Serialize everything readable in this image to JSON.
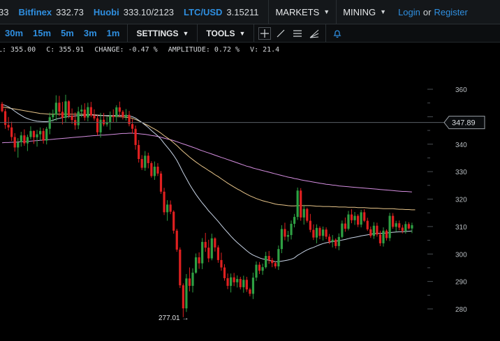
{
  "ticker": [
    {
      "exchange": "",
      "price": "33"
    },
    {
      "exchange": "Bitfinex",
      "price": "332.73"
    },
    {
      "exchange": "Huobi",
      "price": "333.10/2123"
    },
    {
      "exchange": "LTC/USD",
      "price": "3.15211"
    }
  ],
  "menus": {
    "markets": "MARKETS",
    "mining": "MINING"
  },
  "auth": {
    "login": "Login",
    "or": "or",
    "register": "Register"
  },
  "timeframes": [
    "30m",
    "15m",
    "5m",
    "3m",
    "1m"
  ],
  "toolbar": {
    "settings": "SETTINGS",
    "tools": "TOOLS"
  },
  "tool_icons": [
    "crosshair-icon",
    "line-icon",
    "horizontal-lines-icon",
    "fan-icon",
    "alarm-bell-icon"
  ],
  "stats": {
    "low": "L: 355.00",
    "close": "C: 355.91",
    "change": "CHANGE: -0.47 %",
    "amplitude": "AMPLITUDE: 0.72 %",
    "volume": "V: 21.4"
  },
  "colors": {
    "up": "#2ea043",
    "down": "#e02020",
    "accent": "#2f8fe0",
    "ma_fast": "#c8d4e6",
    "ma_mid": "#e8c58a",
    "ma_slow": "#d58ee0"
  },
  "chart_data": {
    "type": "candlestick",
    "ylim": [
      274,
      366
    ],
    "yticks": [
      280,
      290,
      300,
      310,
      320,
      330,
      340,
      360
    ],
    "current_price": "347.89",
    "low_marker": "277.01 →",
    "candles": [
      [
        354.7,
        355.4,
        351.6,
        352.0
      ],
      [
        352.0,
        352.9,
        345.6,
        347.0
      ],
      [
        347.0,
        349.9,
        345.0,
        346.1
      ],
      [
        346.1,
        348.2,
        341.2,
        342.6
      ],
      [
        342.6,
        344.0,
        337.3,
        338.8
      ],
      [
        338.8,
        342.2,
        335.1,
        340.7
      ],
      [
        340.7,
        344.5,
        339.1,
        343.2
      ],
      [
        343.2,
        345.4,
        339.4,
        340.3
      ],
      [
        340.3,
        343.5,
        337.5,
        342.6
      ],
      [
        342.6,
        346.5,
        341.8,
        344.8
      ],
      [
        344.8,
        345.0,
        340.1,
        342.5
      ],
      [
        342.5,
        345.2,
        339.1,
        343.6
      ],
      [
        343.6,
        346.1,
        341.2,
        344.8
      ],
      [
        344.8,
        345.8,
        340.2,
        341.3
      ],
      [
        341.3,
        346.3,
        339.9,
        345.6
      ],
      [
        345.6,
        351.5,
        343.6,
        349.8
      ],
      [
        349.8,
        352.6,
        348.2,
        350.8
      ],
      [
        350.8,
        357.8,
        348.5,
        355.1
      ],
      [
        355.1,
        357.6,
        350.2,
        351.8
      ],
      [
        351.8,
        355.4,
        347.2,
        349.6
      ],
      [
        349.6,
        358.0,
        347.9,
        355.6
      ],
      [
        355.6,
        356.0,
        349.4,
        350.4
      ],
      [
        350.4,
        353.0,
        347.4,
        348.8
      ],
      [
        348.8,
        351.6,
        345.3,
        346.9
      ],
      [
        346.9,
        353.6,
        345.5,
        351.9
      ],
      [
        351.9,
        354.3,
        349.8,
        352.6
      ],
      [
        352.6,
        354.9,
        348.6,
        349.7
      ],
      [
        349.7,
        355.1,
        348.3,
        353.5
      ],
      [
        353.5,
        355.4,
        349.8,
        350.5
      ],
      [
        350.5,
        352.7,
        348.6,
        349.4
      ],
      [
        349.4,
        350.6,
        343.2,
        344.3
      ],
      [
        344.3,
        351.4,
        342.4,
        348.9
      ],
      [
        348.9,
        351.4,
        346.5,
        347.2
      ],
      [
        347.2,
        350.0,
        346.4,
        348.0
      ],
      [
        348.0,
        351.9,
        345.2,
        350.4
      ],
      [
        350.4,
        352.7,
        348.1,
        349.9
      ],
      [
        349.9,
        354.2,
        348.1,
        353.4
      ],
      [
        353.4,
        355.5,
        350.0,
        351.8
      ],
      [
        351.8,
        352.4,
        349.0,
        349.9
      ],
      [
        349.9,
        352.8,
        348.6,
        350.7
      ],
      [
        350.7,
        352.1,
        346.5,
        347.3
      ],
      [
        347.3,
        349.2,
        343.8,
        345.6
      ],
      [
        345.6,
        346.8,
        338.0,
        339.7
      ],
      [
        339.7,
        341.5,
        333.3,
        334.6
      ],
      [
        334.6,
        336.0,
        330.6,
        331.4
      ],
      [
        331.4,
        337.5,
        330.3,
        335.8
      ],
      [
        335.8,
        336.9,
        331.2,
        333.1
      ],
      [
        333.1,
        333.8,
        327.8,
        328.4
      ],
      [
        328.4,
        333.7,
        327.0,
        331.8
      ],
      [
        331.8,
        333.1,
        328.4,
        329.3
      ],
      [
        329.3,
        330.2,
        321.9,
        322.7
      ],
      [
        322.7,
        324.1,
        314.2,
        315.2
      ],
      [
        315.2,
        319.6,
        312.1,
        318.0
      ],
      [
        318.0,
        319.5,
        314.5,
        315.4
      ],
      [
        315.4,
        315.9,
        307.4,
        308.5
      ],
      [
        308.5,
        309.2,
        300.8,
        301.6
      ],
      [
        301.6,
        302.4,
        287.6,
        288.6
      ],
      [
        288.6,
        289.3,
        277.0,
        280.2
      ],
      [
        280.2,
        292.7,
        278.9,
        291.1
      ],
      [
        291.1,
        295.1,
        286.4,
        288.4
      ],
      [
        288.4,
        294.8,
        286.0,
        293.2
      ],
      [
        293.2,
        300.2,
        292.8,
        298.8
      ],
      [
        298.8,
        300.6,
        294.6,
        296.6
      ],
      [
        296.6,
        305.8,
        294.5,
        304.4
      ],
      [
        304.4,
        307.7,
        300.8,
        302.3
      ],
      [
        302.3,
        305.2,
        297.0,
        298.4
      ],
      [
        298.4,
        307.4,
        297.7,
        305.7
      ],
      [
        305.7,
        306.1,
        300.9,
        302.4
      ],
      [
        302.4,
        303.2,
        296.8,
        297.8
      ],
      [
        297.8,
        300.5,
        293.9,
        295.1
      ],
      [
        295.1,
        296.3,
        290.3,
        291.2
      ],
      [
        291.2,
        292.9,
        287.2,
        288.4
      ],
      [
        288.4,
        292.9,
        286.0,
        291.5
      ],
      [
        291.5,
        293.1,
        288.3,
        289.7
      ],
      [
        289.7,
        292.2,
        287.8,
        290.9
      ],
      [
        290.9,
        291.7,
        287.1,
        287.9
      ],
      [
        287.9,
        292.1,
        285.9,
        290.6
      ],
      [
        290.6,
        291.7,
        286.2,
        287.1
      ],
      [
        287.1,
        287.7,
        284.6,
        285.5
      ],
      [
        285.5,
        293.2,
        283.6,
        291.4
      ],
      [
        291.4,
        297.3,
        290.2,
        296.1
      ],
      [
        296.1,
        297.1,
        292.7,
        293.9
      ],
      [
        293.9,
        296.5,
        292.4,
        295.2
      ],
      [
        295.2,
        300.8,
        294.7,
        299.3
      ],
      [
        299.3,
        301.1,
        296.4,
        297.8
      ],
      [
        297.8,
        298.6,
        295.2,
        296.7
      ],
      [
        296.7,
        297.3,
        294.7,
        295.5
      ],
      [
        295.5,
        303.1,
        294.2,
        301.8
      ],
      [
        301.8,
        310.5,
        300.3,
        309.1
      ],
      [
        309.1,
        311.4,
        305.0,
        306.3
      ],
      [
        306.3,
        308.4,
        304.5,
        306.9
      ],
      [
        306.9,
        312.2,
        305.3,
        311.0
      ],
      [
        311.0,
        314.6,
        309.7,
        313.5
      ],
      [
        313.5,
        324.2,
        312.4,
        323.1
      ],
      [
        323.1,
        324.0,
        312.1,
        313.3
      ],
      [
        313.3,
        317.9,
        310.7,
        316.4
      ],
      [
        316.4,
        316.9,
        311.4,
        312.1
      ],
      [
        312.1,
        314.6,
        307.9,
        308.8
      ],
      [
        308.8,
        310.8,
        305.1,
        306.0
      ],
      [
        306.0,
        310.8,
        303.9,
        309.5
      ],
      [
        309.5,
        310.1,
        305.4,
        306.6
      ],
      [
        306.6,
        310.0,
        304.9,
        308.9
      ],
      [
        308.9,
        309.7,
        305.4,
        306.3
      ],
      [
        306.3,
        307.3,
        303.6,
        304.5
      ],
      [
        304.5,
        306.9,
        302.4,
        305.2
      ],
      [
        305.2,
        305.7,
        302.0,
        302.9
      ],
      [
        302.9,
        307.5,
        301.4,
        306.2
      ],
      [
        306.2,
        312.2,
        305.7,
        311.1
      ],
      [
        311.1,
        313.3,
        308.1,
        309.2
      ],
      [
        309.2,
        315.7,
        308.6,
        314.4
      ],
      [
        314.4,
        316.3,
        311.2,
        312.3
      ],
      [
        312.3,
        315.3,
        310.6,
        313.9
      ],
      [
        313.9,
        314.5,
        309.8,
        310.7
      ],
      [
        310.7,
        316.1,
        309.7,
        315.2
      ],
      [
        315.2,
        316.3,
        311.6,
        312.1
      ],
      [
        312.1,
        313.2,
        308.4,
        309.0
      ],
      [
        309.0,
        310.0,
        305.9,
        306.6
      ],
      [
        306.6,
        311.6,
        305.5,
        310.3
      ],
      [
        310.3,
        311.4,
        306.3,
        307.1
      ],
      [
        307.1,
        308.5,
        302.9,
        303.9
      ],
      [
        303.9,
        309.7,
        302.7,
        308.5
      ],
      [
        308.5,
        309.0,
        304.9,
        305.8
      ],
      [
        305.8,
        315.0,
        304.7,
        313.9
      ],
      [
        313.9,
        314.9,
        309.2,
        309.9
      ],
      [
        309.9,
        312.1,
        308.1,
        311.2
      ],
      [
        311.2,
        312.2,
        308.6,
        309.6
      ],
      [
        309.6,
        310.6,
        307.5,
        308.4
      ],
      [
        308.4,
        311.9,
        307.4,
        310.9
      ],
      [
        310.9,
        311.6,
        308.9,
        309.3
      ],
      [
        309.3,
        311.4,
        307.6,
        310.5
      ]
    ],
    "ma_fast": [
      354.5,
      354.1,
      353.6,
      352.9,
      352.0,
      351.2,
      350.5,
      349.8,
      349.3,
      348.9,
      348.6,
      348.4,
      348.3,
      348.2,
      348.2,
      348.4,
      348.7,
      349.1,
      349.4,
      349.7,
      349.9,
      350.1,
      350.2,
      350.3,
      350.4,
      350.5,
      350.5,
      350.6,
      350.6,
      350.6,
      350.4,
      350.4,
      350.4,
      350.4,
      350.4,
      350.4,
      350.5,
      350.5,
      350.4,
      350.4,
      350.3,
      350.0,
      349.5,
      348.7,
      347.9,
      347.0,
      346.1,
      345.0,
      344.0,
      343.0,
      341.8,
      340.3,
      338.9,
      337.5,
      335.9,
      334.1,
      331.9,
      329.6,
      327.5,
      325.4,
      323.5,
      321.7,
      320.1,
      318.6,
      317.2,
      315.7,
      314.5,
      313.2,
      311.9,
      310.5,
      309.1,
      307.8,
      306.5,
      305.3,
      304.2,
      303.2,
      302.2,
      301.2,
      300.3,
      299.6,
      299.1,
      298.6,
      298.2,
      298.0,
      297.7,
      297.4,
      297.2,
      297.2,
      297.4,
      297.6,
      297.8,
      298.1,
      298.6,
      299.5,
      300.2,
      300.9,
      301.5,
      302.0,
      302.4,
      302.9,
      303.4,
      303.8,
      304.1,
      304.3,
      304.5,
      304.7,
      304.8,
      305.1,
      305.3,
      305.6,
      305.9,
      306.1,
      306.3,
      306.6,
      306.8,
      307.0,
      307.2,
      307.4,
      307.5,
      307.5,
      307.6,
      307.6,
      307.8,
      307.9,
      308.0,
      308.1,
      308.1,
      308.2,
      308.3,
      308.4
    ],
    "ma_mid": [
      353.5,
      353.4,
      353.2,
      353.0,
      352.8,
      352.6,
      352.4,
      352.2,
      352.0,
      351.8,
      351.6,
      351.4,
      351.2,
      351.1,
      351.0,
      350.9,
      350.9,
      350.9,
      350.9,
      350.9,
      350.9,
      350.9,
      350.9,
      350.9,
      350.9,
      350.9,
      350.8,
      350.8,
      350.8,
      350.7,
      350.6,
      350.5,
      350.4,
      350.3,
      350.2,
      350.1,
      350.1,
      350.0,
      349.9,
      349.8,
      349.7,
      349.4,
      349.0,
      348.5,
      347.9,
      347.3,
      346.8,
      346.1,
      345.5,
      344.8,
      344.0,
      343.1,
      342.3,
      341.5,
      340.5,
      339.5,
      338.4,
      337.3,
      336.3,
      335.3,
      334.4,
      333.5,
      332.7,
      331.9,
      331.2,
      330.4,
      329.7,
      328.9,
      328.2,
      327.4,
      326.6,
      325.8,
      325.1,
      324.4,
      323.7,
      323.1,
      322.4,
      321.8,
      321.2,
      320.7,
      320.2,
      319.8,
      319.4,
      319.1,
      318.8,
      318.5,
      318.2,
      318.0,
      317.9,
      317.8,
      317.6,
      317.5,
      317.5,
      317.6,
      317.6,
      317.6,
      317.6,
      317.6,
      317.5,
      317.4,
      317.4,
      317.3,
      317.3,
      317.3,
      317.2,
      317.2,
      317.1,
      317.1,
      317.1,
      317.0,
      317.0,
      317.0,
      316.9,
      316.9,
      316.9,
      316.8,
      316.7,
      316.7,
      316.7,
      316.6,
      316.5,
      316.5,
      316.5,
      316.5,
      316.4,
      316.3,
      316.3,
      316.2,
      316.2,
      316.1,
      316.1
    ],
    "ma_slow": [
      340.5,
      340.6,
      340.6,
      340.7,
      340.7,
      340.8,
      340.9,
      340.9,
      341.0,
      341.1,
      341.2,
      341.3,
      341.4,
      341.5,
      341.6,
      341.7,
      341.8,
      341.9,
      342.0,
      342.1,
      342.2,
      342.3,
      342.4,
      342.5,
      342.6,
      342.7,
      342.8,
      342.9,
      343.0,
      343.1,
      343.2,
      343.3,
      343.3,
      343.4,
      343.5,
      343.6,
      343.7,
      343.8,
      343.9,
      343.9,
      344.0,
      344.0,
      343.9,
      343.8,
      343.7,
      343.6,
      343.4,
      343.2,
      343.0,
      342.8,
      342.5,
      342.2,
      341.9,
      341.6,
      341.3,
      340.9,
      340.5,
      340.1,
      339.7,
      339.3,
      338.9,
      338.5,
      338.0,
      337.6,
      337.2,
      336.8,
      336.4,
      336.0,
      335.6,
      335.2,
      334.8,
      334.4,
      334.0,
      333.6,
      333.2,
      332.8,
      332.4,
      332.0,
      331.7,
      331.3,
      331.0,
      330.7,
      330.4,
      330.1,
      329.8,
      329.5,
      329.2,
      328.9,
      328.6,
      328.3,
      328.0,
      327.8,
      327.5,
      327.3,
      327.0,
      326.8,
      326.6,
      326.4,
      326.2,
      326.0,
      325.8,
      325.6,
      325.4,
      325.3,
      325.1,
      325.0,
      324.8,
      324.7,
      324.6,
      324.5,
      324.4,
      324.3,
      324.2,
      324.1,
      324.0,
      323.9,
      323.8,
      323.7,
      323.6,
      323.5,
      323.4,
      323.3,
      323.2,
      323.1,
      323.0,
      322.9,
      322.8,
      322.8,
      322.7,
      322.6
    ]
  }
}
